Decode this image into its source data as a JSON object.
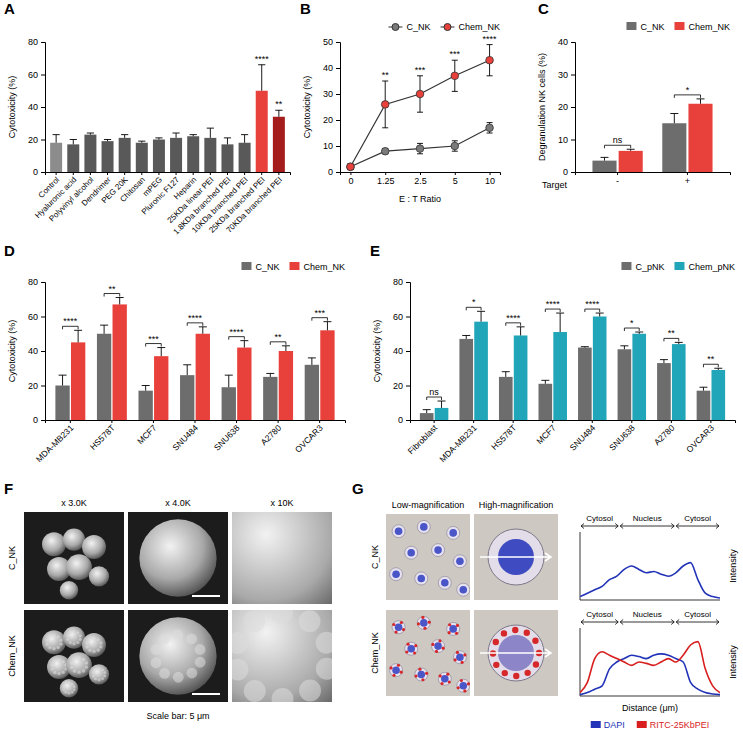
{
  "chart_data": [
    {
      "label": "A",
      "type": "bar",
      "y_label": "Cytotoxicity (%)",
      "categories": [
        "Control",
        "Hyaluronic acid",
        "Polyvinyl alcohol",
        "Dendrimer",
        "PEG 20K",
        "Chitosan",
        "mPEG",
        "Pluronic F127",
        "Heparin",
        "25KDa linear PEI",
        "1.8KDa branched PEI",
        "10KDa branched PEI",
        "25KDa branched PEI",
        "70KDa branched PEI"
      ],
      "values": [
        18,
        17,
        23,
        19,
        21,
        18,
        20,
        21,
        22,
        21,
        17,
        18,
        50,
        34
      ],
      "errors": [
        5,
        3,
        1,
        1,
        2,
        1,
        1,
        3,
        1,
        6,
        4,
        5,
        16,
        4
      ],
      "colors": [
        "#8c8c8c",
        "#595959",
        "#595959",
        "#595959",
        "#595959",
        "#595959",
        "#595959",
        "#595959",
        "#595959",
        "#595959",
        "#595959",
        "#595959",
        "#e8403a",
        "#a51c1c"
      ],
      "significance": [
        null,
        null,
        null,
        null,
        null,
        null,
        null,
        null,
        null,
        null,
        null,
        null,
        "****",
        "**"
      ],
      "ylim": [
        0,
        80
      ],
      "yticks": [
        0,
        20,
        40,
        60,
        80
      ]
    },
    {
      "label": "B",
      "type": "line",
      "x_label": "E : T Ratio",
      "y_label": "Cytotoxicity (%)",
      "categories": [
        "0",
        "1.25",
        "2.5",
        "5",
        "10"
      ],
      "series": [
        {
          "name": "C_NK",
          "color": "#7a7a7a",
          "marker": "circle",
          "values": [
            2,
            8,
            9,
            10,
            17
          ],
          "errors": [
            1,
            1,
            2,
            2,
            2
          ]
        },
        {
          "name": "Chem_NK",
          "color": "#e8403a",
          "marker": "circle",
          "values": [
            2,
            26,
            30,
            37,
            43
          ],
          "errors": [
            1,
            9,
            7,
            6,
            6
          ]
        }
      ],
      "significance": [
        null,
        "**",
        "***",
        "***",
        "****"
      ],
      "ylim": [
        0,
        50
      ],
      "yticks": [
        0,
        10,
        20,
        30,
        40,
        50
      ],
      "legend": "top"
    },
    {
      "label": "C",
      "type": "bar",
      "x_label": "Target",
      "y_label": "Degranulation NK cells (%)",
      "categories": [
        "-",
        "+"
      ],
      "series": [
        {
          "name": "C_NK",
          "color": "#6d6d6d",
          "values": [
            3.5,
            15
          ],
          "errors": [
            1,
            3
          ]
        },
        {
          "name": "Chem_NK",
          "color": "#e8403a",
          "values": [
            6.5,
            21
          ],
          "errors": [
            0.5,
            1.5
          ]
        }
      ],
      "significance": [
        "ns",
        "*"
      ],
      "ylim": [
        0,
        40
      ],
      "yticks": [
        0,
        10,
        20,
        30,
        40
      ],
      "legend": "top"
    },
    {
      "label": "D",
      "type": "bar",
      "y_label": "Cytotoxicity (%)",
      "categories": [
        "MDA-MB231",
        "HS578T",
        "MCF7",
        "SNU484",
        "SNU638",
        "A2780",
        "OVCAR3"
      ],
      "series": [
        {
          "name": "C_NK",
          "color": "#6d6d6d",
          "values": [
            20,
            50,
            17,
            26,
            19,
            25,
            32
          ],
          "errors": [
            6,
            5,
            3,
            6,
            7,
            2,
            4
          ]
        },
        {
          "name": "Chem_NK",
          "color": "#e8403a",
          "values": [
            45,
            67,
            37,
            50,
            42,
            40,
            52
          ],
          "errors": [
            7,
            4,
            5,
            4,
            4,
            3,
            5
          ]
        }
      ],
      "significance": [
        "****",
        "**",
        "***",
        "****",
        "****",
        "**",
        "***"
      ],
      "ylim": [
        0,
        80
      ],
      "yticks": [
        0,
        20,
        40,
        60,
        80
      ],
      "legend": "top"
    },
    {
      "label": "E",
      "type": "bar",
      "y_label": "Cytotoxicity (%)",
      "categories": [
        "Fibroblast",
        "MDA-MB231",
        "HS578T",
        "MCF7",
        "SNU484",
        "SNU638",
        "A2780",
        "OVCAR3"
      ],
      "series": [
        {
          "name": "C_pNK",
          "color": "#6d6d6d",
          "values": [
            4,
            47,
            25,
            21,
            42,
            41,
            33,
            17
          ],
          "errors": [
            2,
            2,
            3,
            2,
            0.5,
            2,
            2,
            2
          ]
        },
        {
          "name": "Chem_pNK",
          "color": "#21a5b8",
          "values": [
            7,
            57,
            49,
            51,
            60,
            50,
            44,
            29
          ],
          "errors": [
            4,
            6,
            5,
            11,
            2,
            1,
            1,
            1
          ]
        }
      ],
      "significance": [
        "ns",
        "*",
        "****",
        "****",
        "****",
        "*",
        "**",
        "**"
      ],
      "ylim": [
        0,
        80
      ],
      "yticks": [
        0,
        20,
        40,
        60,
        80
      ],
      "legend": "top"
    }
  ],
  "image_panels": [
    {
      "label": "F",
      "columns": [
        "x 3.0K",
        "x 4.0K",
        "x 10K"
      ],
      "rows": [
        "C_NK",
        "Chem_NK"
      ],
      "caption": "Scale bar: 5 μm"
    },
    {
      "label": "G",
      "columns": [
        "Low-magnification",
        "High-magnification"
      ],
      "rows": [
        {
          "name": "C_NK",
          "regions": [
            "Cytosol",
            "Nucleus",
            "Cytosol"
          ],
          "profile": {
            "xlim": [
              0,
              19
            ],
            "ylim": [
              0,
              1
            ],
            "series": [
              {
                "color": "#2233b8",
                "values": [
                  0.05,
                  0.1,
                  0.15,
                  0.2,
                  0.3,
                  0.35,
                  0.45,
                  0.5,
                  0.45,
                  0.4,
                  0.42,
                  0.38,
                  0.35,
                  0.4,
                  0.5,
                  0.55,
                  0.3,
                  0.1,
                  0.05,
                  0.03
                ]
              }
            ]
          }
        },
        {
          "name": "Chem_NK",
          "regions": [
            "Cytosol",
            "Nucleus",
            "Cytosol"
          ],
          "profile": {
            "xlim": [
              0,
              19
            ],
            "ylim": [
              0,
              1
            ],
            "series": [
              {
                "color": "#2233b8",
                "values": [
                  0.02,
                  0.05,
                  0.1,
                  0.15,
                  0.4,
                  0.5,
                  0.55,
                  0.6,
                  0.58,
                  0.55,
                  0.6,
                  0.62,
                  0.6,
                  0.55,
                  0.5,
                  0.2,
                  0.1,
                  0.05,
                  0.03,
                  0.02
                ]
              },
              {
                "color": "#d81e1e",
                "values": [
                  0.05,
                  0.2,
                  0.55,
                  0.65,
                  0.6,
                  0.55,
                  0.5,
                  0.45,
                  0.5,
                  0.48,
                  0.45,
                  0.5,
                  0.55,
                  0.5,
                  0.6,
                  0.75,
                  0.8,
                  0.4,
                  0.15,
                  0.05
                ]
              }
            ]
          }
        }
      ],
      "x_label": "Distance (μm)",
      "y_label": "Intensity",
      "legend": [
        {
          "name": "DAPI",
          "color": "#2233b8"
        },
        {
          "name": "RITC-25KbPEI",
          "color": "#d81e1e"
        }
      ]
    }
  ]
}
